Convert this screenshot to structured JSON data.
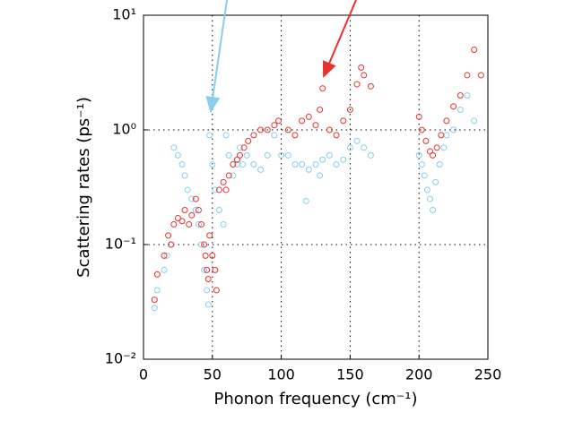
{
  "chart_data": {
    "type": "scatter",
    "xlabel": "Phonon frequency (cm⁻¹)",
    "ylabel": "Scattering rates (ps⁻¹)",
    "xlim": [
      0,
      250
    ],
    "xticks": [
      0,
      50,
      100,
      150,
      200,
      250
    ],
    "ylim": [
      0.01,
      10
    ],
    "log_y": true,
    "yticks": [
      {
        "value": 0.01,
        "label": "10⁻²"
      },
      {
        "value": 0.1,
        "label": "10⁻¹"
      },
      {
        "value": 1,
        "label": "10⁰"
      },
      {
        "value": 10,
        "label": "10¹"
      }
    ],
    "grid": true,
    "series": [
      {
        "color": "#87ceeb",
        "x": [
          8,
          10,
          15,
          17,
          20,
          22,
          25,
          28,
          30,
          32,
          35,
          38,
          40,
          42,
          44,
          46,
          47,
          48,
          50,
          52,
          55,
          58,
          60,
          62,
          65,
          68,
          70,
          72,
          75,
          80,
          85,
          90,
          95,
          100,
          105,
          110,
          115,
          118,
          120,
          125,
          128,
          130,
          135,
          140,
          145,
          150,
          155,
          160,
          165,
          200,
          202,
          204,
          206,
          208,
          210,
          212,
          215,
          218,
          220,
          225,
          230,
          235,
          240
        ],
        "values": [
          0.028,
          0.04,
          0.06,
          0.08,
          0.1,
          0.7,
          0.6,
          0.5,
          0.4,
          0.3,
          0.25,
          0.2,
          0.15,
          0.1,
          0.06,
          0.04,
          0.03,
          0.9,
          0.5,
          0.3,
          0.2,
          0.15,
          0.9,
          0.6,
          0.4,
          0.5,
          0.7,
          0.5,
          0.6,
          0.5,
          0.45,
          0.6,
          0.9,
          0.6,
          0.6,
          0.5,
          0.5,
          0.24,
          0.45,
          0.5,
          0.4,
          0.55,
          0.6,
          0.5,
          0.55,
          0.7,
          0.8,
          0.7,
          0.6,
          0.6,
          0.5,
          0.4,
          0.3,
          0.25,
          0.2,
          0.35,
          0.5,
          0.7,
          0.9,
          1.0,
          1.5,
          2.0,
          1.2
        ]
      },
      {
        "color": "#e8302f",
        "x": [
          8,
          10,
          15,
          18,
          20,
          22,
          25,
          28,
          30,
          33,
          35,
          38,
          40,
          42,
          44,
          45,
          46,
          47,
          48,
          50,
          52,
          53,
          55,
          58,
          60,
          62,
          65,
          68,
          70,
          73,
          76,
          80,
          85,
          90,
          95,
          98,
          105,
          110,
          115,
          120,
          125,
          128,
          130,
          135,
          140,
          145,
          150,
          155,
          158,
          160,
          165,
          200,
          202,
          205,
          208,
          210,
          213,
          216,
          220,
          225,
          230,
          235,
          240,
          245
        ],
        "values": [
          0.033,
          0.055,
          0.08,
          0.12,
          0.1,
          0.15,
          0.17,
          0.16,
          0.2,
          0.15,
          0.18,
          0.25,
          0.2,
          0.15,
          0.1,
          0.08,
          0.06,
          0.05,
          0.12,
          0.08,
          0.06,
          0.04,
          0.3,
          0.35,
          0.3,
          0.4,
          0.5,
          0.55,
          0.6,
          0.7,
          0.8,
          0.9,
          1.0,
          1.0,
          1.1,
          1.2,
          1.0,
          0.9,
          1.2,
          1.3,
          1.1,
          1.5,
          2.3,
          1.0,
          0.9,
          1.2,
          1.5,
          2.5,
          3.5,
          3.0,
          2.4,
          1.3,
          1.0,
          0.8,
          0.65,
          0.6,
          0.7,
          0.9,
          1.2,
          1.6,
          2.0,
          3.0,
          5.0,
          3.0
        ]
      }
    ]
  }
}
